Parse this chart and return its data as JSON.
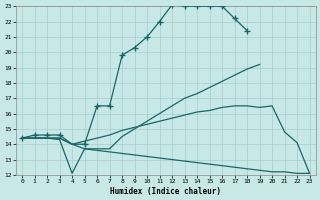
{
  "xlabel": "Humidex (Indice chaleur)",
  "bg_color": "#c8e8e8",
  "grid_color": "#a8cccc",
  "line_color": "#1a6666",
  "xlim": [
    -0.5,
    23.5
  ],
  "ylim": [
    12,
    23
  ],
  "xticks": [
    0,
    1,
    2,
    3,
    4,
    5,
    6,
    7,
    8,
    9,
    10,
    11,
    12,
    13,
    14,
    15,
    16,
    17,
    18,
    19,
    20,
    21,
    22,
    23
  ],
  "yticks": [
    12,
    13,
    14,
    15,
    16,
    17,
    18,
    19,
    20,
    21,
    22,
    23
  ],
  "curve1_x": [
    0,
    1,
    2,
    3,
    4,
    5,
    6,
    7,
    8,
    9,
    10,
    11,
    12,
    13,
    14,
    15,
    16,
    17,
    18
  ],
  "curve1_y": [
    14.4,
    14.6,
    14.6,
    14.6,
    14.0,
    14.0,
    16.5,
    16.5,
    19.8,
    20.3,
    21.0,
    22.0,
    23.1,
    23.0,
    23.0,
    23.0,
    23.0,
    22.2,
    21.4
  ],
  "curve1_markers_x": [
    0,
    1,
    2,
    3,
    5,
    6,
    7,
    8,
    9,
    10,
    11,
    12,
    13,
    14,
    15,
    16,
    17,
    18
  ],
  "curve1_markers_y": [
    14.4,
    14.6,
    14.6,
    14.6,
    14.0,
    16.5,
    16.5,
    19.8,
    20.3,
    21.0,
    22.0,
    23.1,
    23.0,
    23.0,
    23.0,
    23.0,
    22.2,
    21.4
  ],
  "curve2_x": [
    0,
    1,
    2,
    3,
    4,
    5,
    6,
    7,
    8,
    9,
    10,
    11,
    12,
    13,
    14,
    15,
    16,
    17,
    18,
    19
  ],
  "curve2_y": [
    14.4,
    14.4,
    14.4,
    14.4,
    14.0,
    13.7,
    13.7,
    13.7,
    14.5,
    15.0,
    15.5,
    16.0,
    16.5,
    17.0,
    17.3,
    17.7,
    18.1,
    18.5,
    18.9,
    19.2
  ],
  "curve3_x": [
    0,
    1,
    2,
    3,
    4,
    5,
    6,
    7,
    8,
    9,
    10,
    11,
    12,
    13,
    14,
    15,
    16,
    17,
    18,
    19,
    20,
    21,
    22,
    23
  ],
  "curve3_y": [
    14.4,
    14.4,
    14.4,
    14.4,
    14.0,
    14.2,
    14.4,
    14.6,
    14.9,
    15.1,
    15.3,
    15.5,
    15.7,
    15.9,
    16.1,
    16.2,
    16.4,
    16.5,
    16.5,
    16.4,
    16.5,
    14.8,
    14.1,
    12.1
  ],
  "curve4_x": [
    0,
    1,
    2,
    3,
    4,
    5,
    6,
    7,
    8,
    9,
    10,
    11,
    12,
    13,
    14,
    15,
    16,
    17,
    18,
    19,
    20,
    21,
    22,
    23
  ],
  "curve4_y": [
    14.4,
    14.4,
    14.4,
    14.3,
    12.1,
    13.7,
    13.6,
    13.5,
    13.4,
    13.3,
    13.2,
    13.1,
    13.0,
    12.9,
    12.8,
    12.7,
    12.6,
    12.5,
    12.4,
    12.3,
    12.2,
    12.2,
    12.1,
    12.1
  ]
}
